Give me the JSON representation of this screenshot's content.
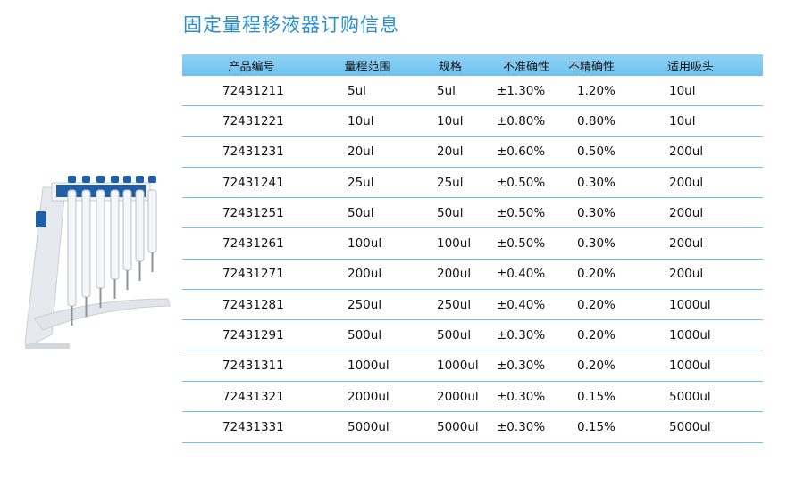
{
  "title": "固定量程移液器订购信息",
  "table": {
    "headers": [
      "产品编号",
      "量程范围",
      "规格",
      "不准确性",
      "不精确性",
      "适用吸头"
    ],
    "rows": [
      [
        "72431211",
        "5ul",
        "5ul",
        "±1.30%",
        "1.20%",
        "10ul"
      ],
      [
        "72431221",
        "10ul",
        "10ul",
        "±0.80%",
        "0.80%",
        "10ul"
      ],
      [
        "72431231",
        "20ul",
        "20ul",
        "±0.60%",
        "0.50%",
        "200ul"
      ],
      [
        "72431241",
        "25ul",
        "25ul",
        "±0.50%",
        "0.30%",
        "200ul"
      ],
      [
        "72431251",
        "50ul",
        "50ul",
        "±0.50%",
        "0.30%",
        "200ul"
      ],
      [
        "72431261",
        "100ul",
        "100ul",
        "±0.50%",
        "0.30%",
        "200ul"
      ],
      [
        "72431271",
        "200ul",
        "200ul",
        "±0.40%",
        "0.20%",
        "200ul"
      ],
      [
        "72431281",
        "250ul",
        "250ul",
        "±0.40%",
        "0.20%",
        "1000ul"
      ],
      [
        "72431291",
        "500ul",
        "500ul",
        "±0.30%",
        "0.20%",
        "1000ul"
      ],
      [
        "72431311",
        "1000ul",
        "1000ul",
        "±0.30%",
        "0.20%",
        "1000ul"
      ],
      [
        "72431321",
        "2000ul",
        "2000ul",
        "±0.30%",
        "0.15%",
        "5000ul"
      ],
      [
        "72431331",
        "5000ul",
        "5000ul",
        "±0.30%",
        "0.15%",
        "5000ul"
      ]
    ]
  },
  "colors": {
    "title": "#2a8fd0",
    "header_bg": "#6ec2ef",
    "row_rule": "#6ec2ef",
    "pipette_blue": "#1f5fa8"
  }
}
